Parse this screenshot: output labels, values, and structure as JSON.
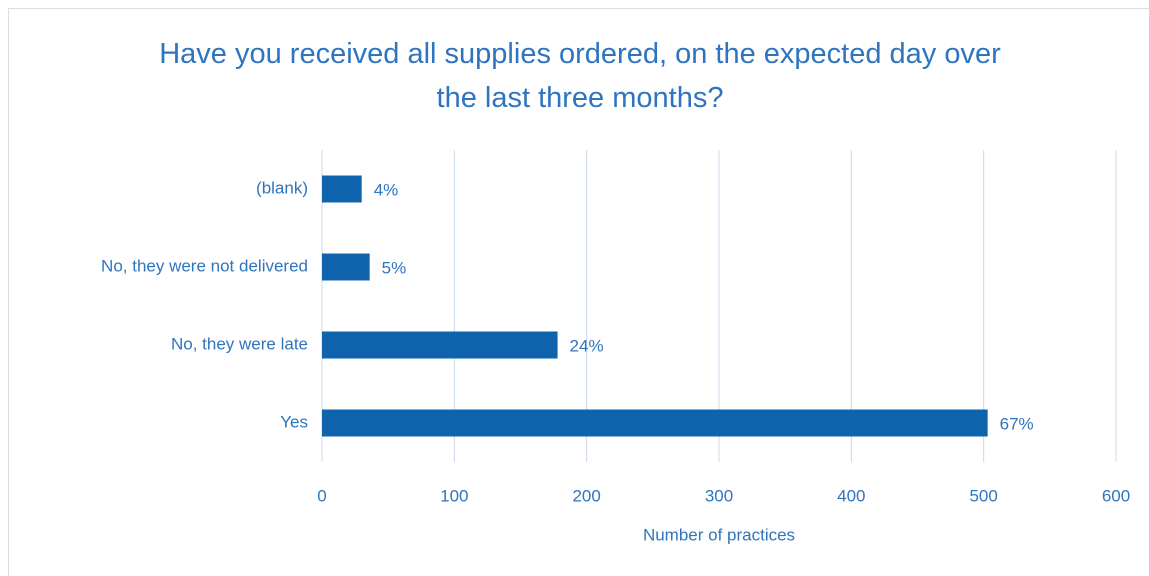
{
  "chart_data": {
    "type": "bar",
    "orientation": "horizontal",
    "title": "Have you received all supplies ordered, on the expected day over the last three months?",
    "categories": [
      "(blank)",
      "No, they were not delivered",
      "No, they were late",
      "Yes"
    ],
    "values": [
      30,
      36,
      178,
      503
    ],
    "value_labels": [
      "4%",
      "5%",
      "24%",
      "67%"
    ],
    "color": "#0f63ad",
    "x_label": "Number of practices",
    "xlim": [
      0,
      600
    ],
    "xticks": [
      0,
      100,
      200,
      300,
      400,
      500,
      600
    ],
    "grid": true
  }
}
